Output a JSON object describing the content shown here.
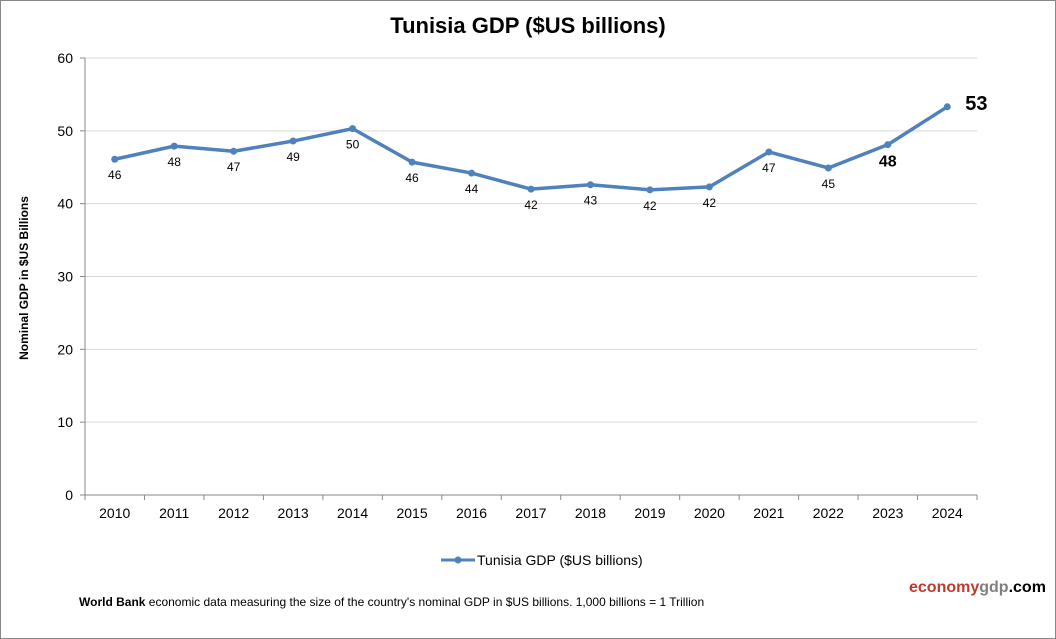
{
  "chart_data": {
    "type": "line",
    "title": "Tunisia GDP ($US billions)",
    "ylabel": "Nominal GDP in $US Billions",
    "xlabel": "",
    "ylim": [
      0,
      60
    ],
    "yticks": [
      0,
      10,
      20,
      30,
      40,
      50,
      60
    ],
    "grid": true,
    "legend_position": "bottom",
    "categories": [
      "2010",
      "2011",
      "2012",
      "2013",
      "2014",
      "2015",
      "2016",
      "2017",
      "2018",
      "2019",
      "2020",
      "2021",
      "2022",
      "2023",
      "2024"
    ],
    "series": [
      {
        "name": "Tunisia GDP ($US billions)",
        "color": "#4F81BD",
        "values": [
          46.1,
          47.9,
          47.2,
          48.6,
          50.3,
          45.7,
          44.2,
          42.0,
          42.6,
          41.9,
          42.3,
          47.1,
          44.9,
          48.1,
          53.3
        ],
        "data_labels": [
          "46",
          "48",
          "47",
          "49",
          "50",
          "46",
          "44",
          "42",
          "43",
          "42",
          "42",
          "47",
          "45",
          "48",
          "53"
        ]
      }
    ]
  },
  "footer": {
    "source_bold": "World Bank",
    "text": " economic data  measuring the size of the country's nominal  GDP in $US billions. 1,000 billions = 1 Trillion"
  },
  "brand": {
    "part1": "economy",
    "part2": "gdp",
    "part3": ".com",
    "color1": "#C0392B",
    "color2": "#7F7F7F",
    "color3": "#000000"
  }
}
